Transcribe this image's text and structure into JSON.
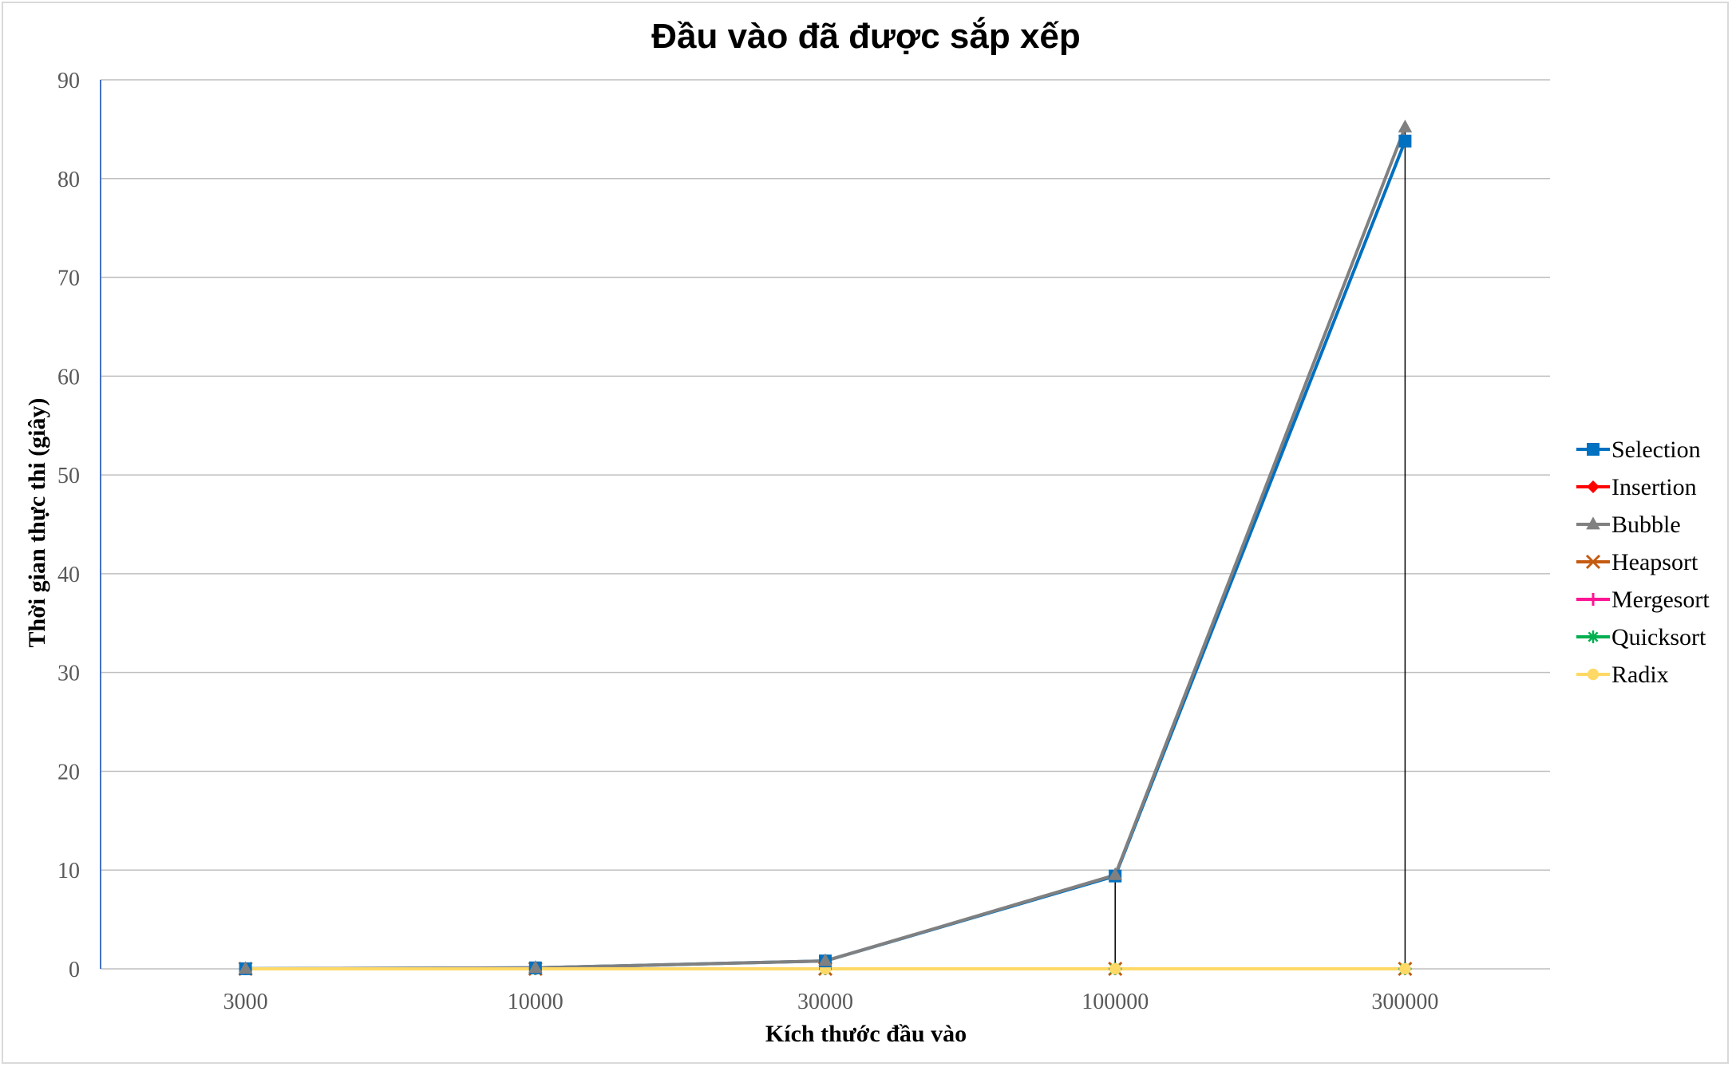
{
  "chart_data": {
    "type": "line",
    "title": "Đầu vào đã được sắp xếp",
    "xlabel": "Kích thước đầu vào",
    "ylabel": "Thời gian thực thi (giây)",
    "categories": [
      "3000",
      "10000",
      "30000",
      "100000",
      "300000"
    ],
    "ylim": [
      0,
      90
    ],
    "yticks": [
      0,
      10,
      20,
      30,
      40,
      50,
      60,
      70,
      80,
      90
    ],
    "grid": true,
    "legend_position": "right",
    "series": [
      {
        "name": "Selection",
        "color": "#0070c0",
        "marker": "square",
        "values": [
          0.01,
          0.1,
          0.8,
          9.4,
          83.8
        ]
      },
      {
        "name": "Insertion",
        "color": "#ff0000",
        "marker": "diamond",
        "values": [
          0,
          0,
          0,
          0,
          0
        ]
      },
      {
        "name": "Bubble",
        "color": "#808080",
        "marker": "triangle",
        "values": [
          0.01,
          0.1,
          0.8,
          9.5,
          85.2
        ]
      },
      {
        "name": "Heapsort",
        "color": "#c55a11",
        "marker": "x",
        "values": [
          0,
          0,
          0,
          0,
          0
        ]
      },
      {
        "name": "Mergesort",
        "color": "#ff1493",
        "marker": "plus",
        "values": [
          0,
          0,
          0,
          0,
          0
        ]
      },
      {
        "name": "Quicksort",
        "color": "#00b050",
        "marker": "asterisk",
        "values": [
          0,
          0,
          0,
          0,
          0
        ]
      },
      {
        "name": "Radix",
        "color": "#ffd966",
        "marker": "circle",
        "values": [
          0,
          0,
          0,
          0,
          0
        ]
      }
    ]
  }
}
